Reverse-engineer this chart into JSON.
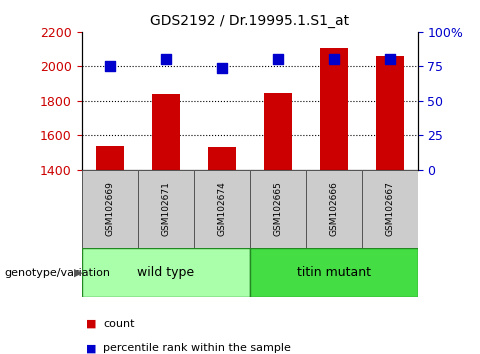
{
  "title": "GDS2192 / Dr.19995.1.S1_at",
  "samples": [
    "GSM102669",
    "GSM102671",
    "GSM102674",
    "GSM102665",
    "GSM102666",
    "GSM102667"
  ],
  "counts": [
    1540,
    1840,
    1535,
    1845,
    2105,
    2060
  ],
  "percentiles": [
    75,
    80,
    74,
    80,
    80,
    80
  ],
  "ylim_left": [
    1400,
    2200
  ],
  "ylim_right": [
    0,
    100
  ],
  "yticks_left": [
    1400,
    1600,
    1800,
    2000,
    2200
  ],
  "yticks_right": [
    0,
    25,
    50,
    75,
    100
  ],
  "ytick_labels_right": [
    "0",
    "25",
    "50",
    "75",
    "100%"
  ],
  "bar_color": "#cc0000",
  "dot_color": "#0000cc",
  "grid_color": "#000000",
  "group1_label": "wild type",
  "group2_label": "titin mutant",
  "group1_color": "#aaffaa",
  "group2_color": "#44dd44",
  "group1_n": 3,
  "group2_n": 3,
  "genotype_label": "genotype/variation",
  "legend_count_label": "count",
  "legend_pct_label": "percentile rank within the sample",
  "tick_color_left": "#cc0000",
  "tick_color_right": "#0000cc",
  "bar_width": 0.5,
  "dot_size": 45,
  "sample_box_color": "#cccccc",
  "title_fontsize": 10
}
